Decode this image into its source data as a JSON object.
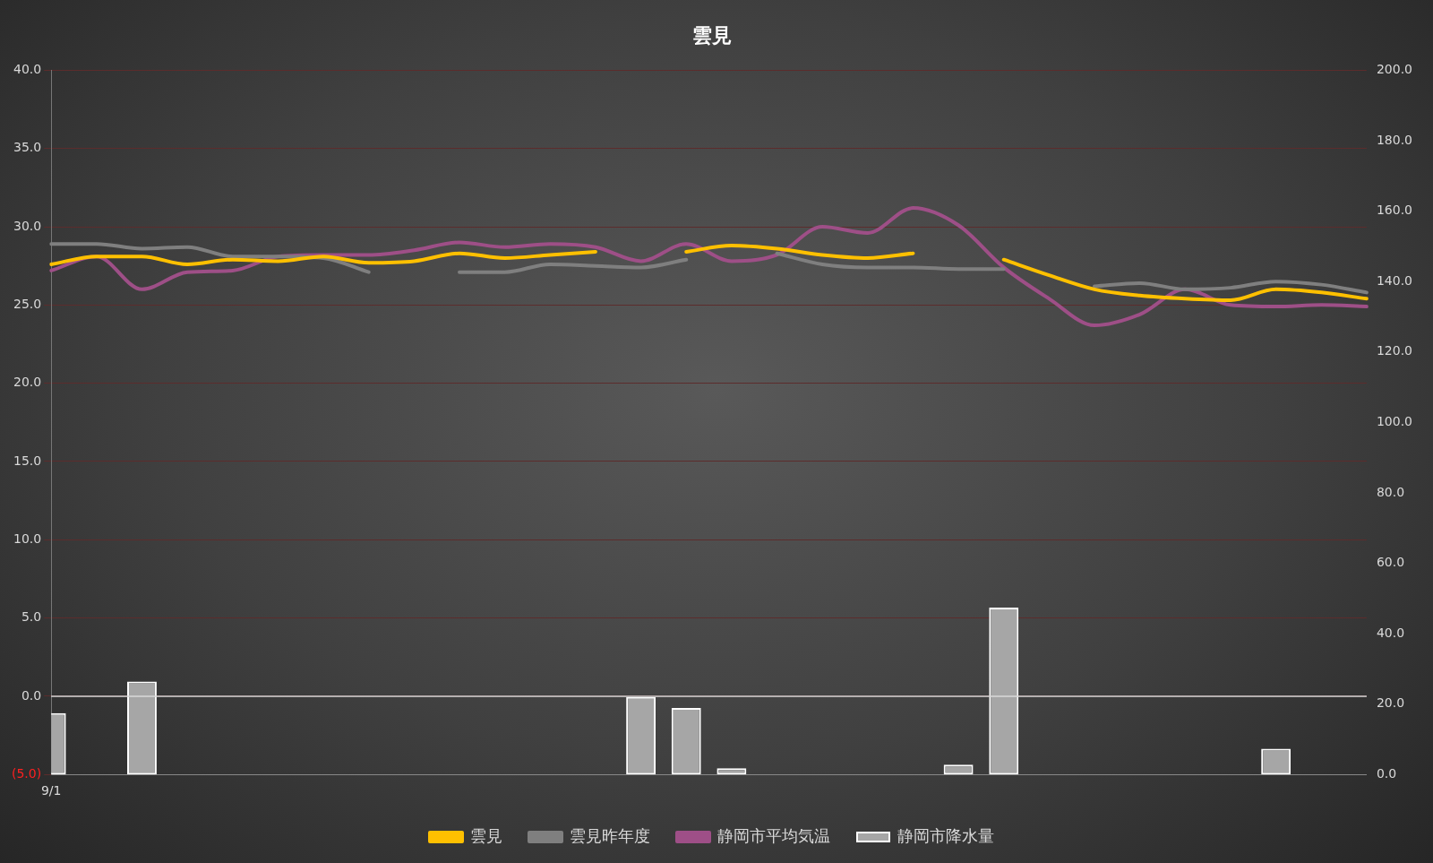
{
  "chart_data": {
    "type": "line",
    "title": "雲見",
    "categories": [
      "9/1",
      null,
      null,
      null,
      null,
      null,
      null,
      null,
      null,
      null,
      null,
      null,
      null,
      null,
      null,
      null,
      null,
      null,
      null,
      null,
      null,
      null,
      null,
      null,
      null,
      null,
      null,
      null,
      null,
      null
    ],
    "series": [
      {
        "name": "静岡市降水量",
        "type": "bar",
        "axis": "y2",
        "color": "#a6a6a6",
        "values": [
          17.4,
          0,
          26.4,
          0,
          0,
          0,
          0,
          0,
          0,
          0,
          0,
          0,
          0,
          22.0,
          18.9,
          1.8,
          0,
          0,
          0,
          0,
          2.8,
          47.4,
          0,
          0,
          0,
          0,
          0,
          7.3,
          0,
          0
        ]
      },
      {
        "name": "雲見",
        "color": "#ffc000",
        "values": [
          27.6,
          28.1,
          28.1,
          27.6,
          27.9,
          27.8,
          28.1,
          27.7,
          27.8,
          28.3,
          28.0,
          28.2,
          28.4,
          null,
          28.4,
          28.8,
          28.6,
          28.2,
          28.0,
          28.3,
          null,
          27.9,
          26.9,
          26.0,
          25.6,
          25.4,
          25.3,
          26.0,
          25.8,
          25.4
        ]
      },
      {
        "name": "雲見昨年度",
        "color": "#7f7f7f",
        "values": [
          28.9,
          28.9,
          28.6,
          28.7,
          28.1,
          28.1,
          28.0,
          27.1,
          null,
          27.1,
          27.1,
          27.6,
          27.5,
          27.4,
          27.9,
          null,
          28.3,
          27.6,
          27.4,
          27.4,
          27.3,
          27.3,
          null,
          26.2,
          26.4,
          26.0,
          26.1,
          26.5,
          26.3,
          25.8
        ]
      },
      {
        "name": "静岡市平均気温",
        "color": "#9e4f87",
        "values": [
          27.2,
          28.1,
          26.0,
          27.1,
          27.2,
          28.1,
          28.2,
          28.2,
          28.5,
          29.0,
          28.7,
          28.9,
          28.7,
          27.8,
          28.9,
          27.8,
          28.2,
          30.0,
          29.6,
          31.2,
          30.1,
          27.4,
          25.4,
          23.7,
          24.4,
          26.0,
          25.0,
          24.9,
          25.0,
          24.9
        ]
      }
    ],
    "ylim": [
      -5,
      40
    ],
    "yticks": [
      {
        "value": -5,
        "label": "(5.0)"
      },
      {
        "value": 0,
        "label": "0.0"
      },
      {
        "value": 5,
        "label": "5.0"
      },
      {
        "value": 10,
        "label": "10.0"
      },
      {
        "value": 15,
        "label": "15.0"
      },
      {
        "value": 20,
        "label": "20.0"
      },
      {
        "value": 25,
        "label": "25.0"
      },
      {
        "value": 30,
        "label": "30.0"
      },
      {
        "value": 35,
        "label": "35.0"
      },
      {
        "value": 40,
        "label": "40.0"
      }
    ],
    "y2lim": [
      0,
      200
    ],
    "y2ticks": [
      {
        "value": 0,
        "label": "0.0"
      },
      {
        "value": 20,
        "label": "20.0"
      },
      {
        "value": 40,
        "label": "40.0"
      },
      {
        "value": 60,
        "label": "60.0"
      },
      {
        "value": 80,
        "label": "80.0"
      },
      {
        "value": 100,
        "label": "100.0"
      },
      {
        "value": 120,
        "label": "120.0"
      },
      {
        "value": 140,
        "label": "140.0"
      },
      {
        "value": 160,
        "label": "160.0"
      },
      {
        "value": 180,
        "label": "180.0"
      },
      {
        "value": 200,
        "label": "200.0"
      }
    ],
    "ref_lines": [
      {
        "axis": "y",
        "value": 0,
        "color": "#d9d9d9"
      }
    ],
    "grid": "y",
    "legend": "bottom",
    "marker": "none",
    "line_style": "solid"
  }
}
